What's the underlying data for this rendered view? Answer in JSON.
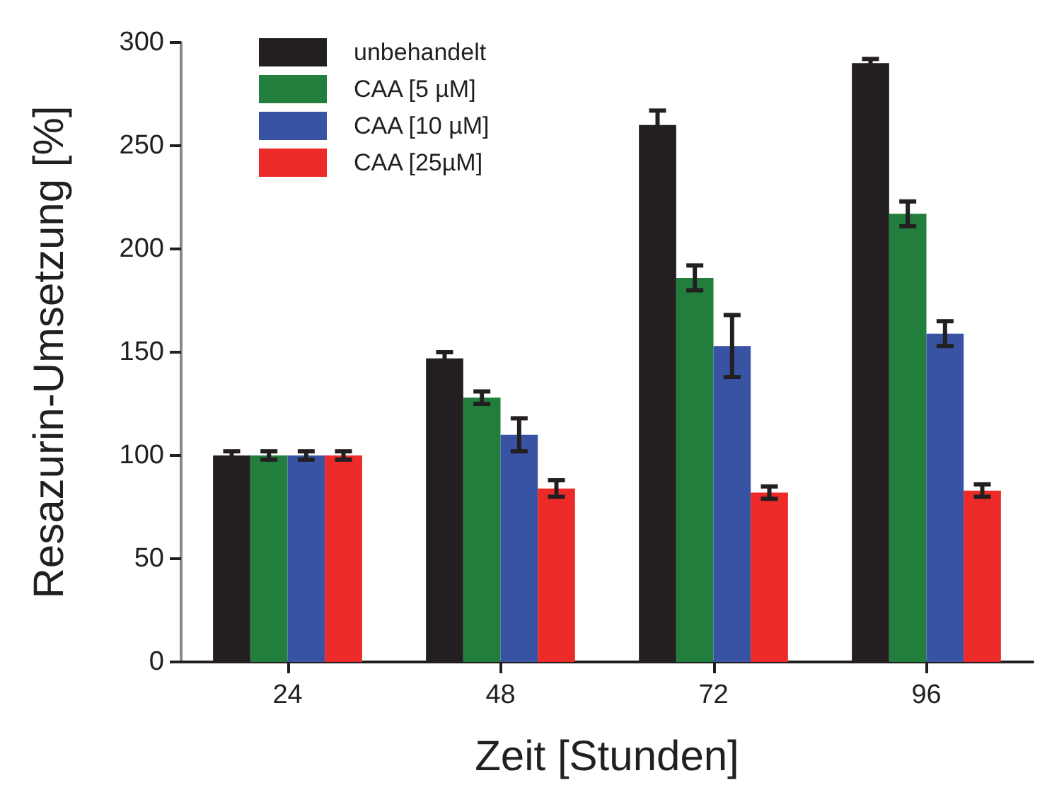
{
  "chart_data": {
    "type": "bar",
    "xlabel": "Zeit [Stunden]",
    "ylabel": "Resazurin-Umsetzung [%]",
    "categories": [
      "24",
      "48",
      "72",
      "96"
    ],
    "series": [
      {
        "name": "unbehandelt",
        "color": "#231f20",
        "values": [
          100,
          147,
          260,
          290
        ],
        "errors": [
          2,
          3,
          7,
          2
        ]
      },
      {
        "name": "CAA [5 µM]",
        "color": "#217e3d",
        "values": [
          100,
          128,
          186,
          217
        ],
        "errors": [
          2,
          3,
          6,
          6
        ]
      },
      {
        "name": "CAA [10 µM]",
        "color": "#3953a4",
        "values": [
          100,
          110,
          153,
          159
        ],
        "errors": [
          2,
          8,
          15,
          6
        ]
      },
      {
        "name": "CAA [25µM]",
        "color": "#ec2a27",
        "values": [
          100,
          84,
          82,
          83
        ],
        "errors": [
          2,
          4,
          3,
          3
        ]
      }
    ],
    "ylim": [
      0,
      300
    ],
    "yticks": [
      0,
      50,
      100,
      150,
      200,
      250,
      300
    ],
    "grid": false,
    "legend": "top left"
  }
}
